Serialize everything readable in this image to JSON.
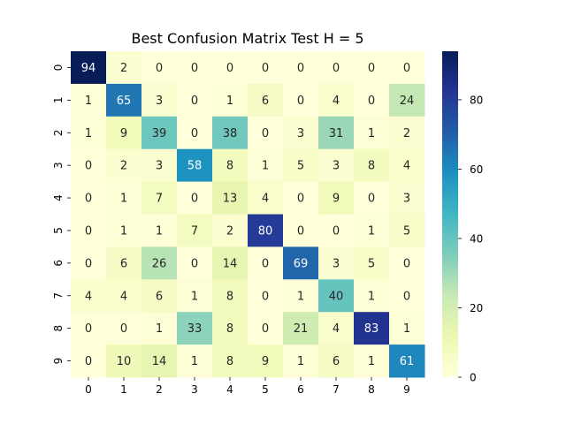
{
  "chart_data": {
    "type": "heatmap",
    "title": "Best Confusion Matrix Test H = 5",
    "xlabel": "",
    "ylabel": "",
    "x_categories": [
      "0",
      "1",
      "2",
      "3",
      "4",
      "5",
      "6",
      "7",
      "8",
      "9"
    ],
    "y_categories": [
      "0",
      "1",
      "2",
      "3",
      "4",
      "5",
      "6",
      "7",
      "8",
      "9"
    ],
    "values": [
      [
        94,
        2,
        0,
        0,
        0,
        0,
        0,
        0,
        0,
        0
      ],
      [
        1,
        65,
        3,
        0,
        1,
        6,
        0,
        4,
        0,
        24
      ],
      [
        1,
        9,
        39,
        0,
        38,
        0,
        3,
        31,
        1,
        2
      ],
      [
        0,
        2,
        3,
        58,
        8,
        1,
        5,
        3,
        8,
        4
      ],
      [
        0,
        1,
        7,
        0,
        13,
        4,
        0,
        9,
        0,
        3
      ],
      [
        0,
        1,
        1,
        7,
        2,
        80,
        0,
        0,
        1,
        5
      ],
      [
        0,
        6,
        26,
        0,
        14,
        0,
        69,
        3,
        5,
        0
      ],
      [
        4,
        4,
        6,
        1,
        8,
        0,
        1,
        40,
        1,
        0
      ],
      [
        0,
        0,
        1,
        33,
        8,
        0,
        21,
        4,
        83,
        1
      ],
      [
        0,
        10,
        14,
        1,
        8,
        9,
        1,
        6,
        1,
        61
      ]
    ],
    "colormap": "YlGnBu",
    "vmin": 0,
    "vmax": 94,
    "colorbar_ticks": [
      0,
      20,
      40,
      60,
      80
    ],
    "annotated": true,
    "grid": false
  }
}
